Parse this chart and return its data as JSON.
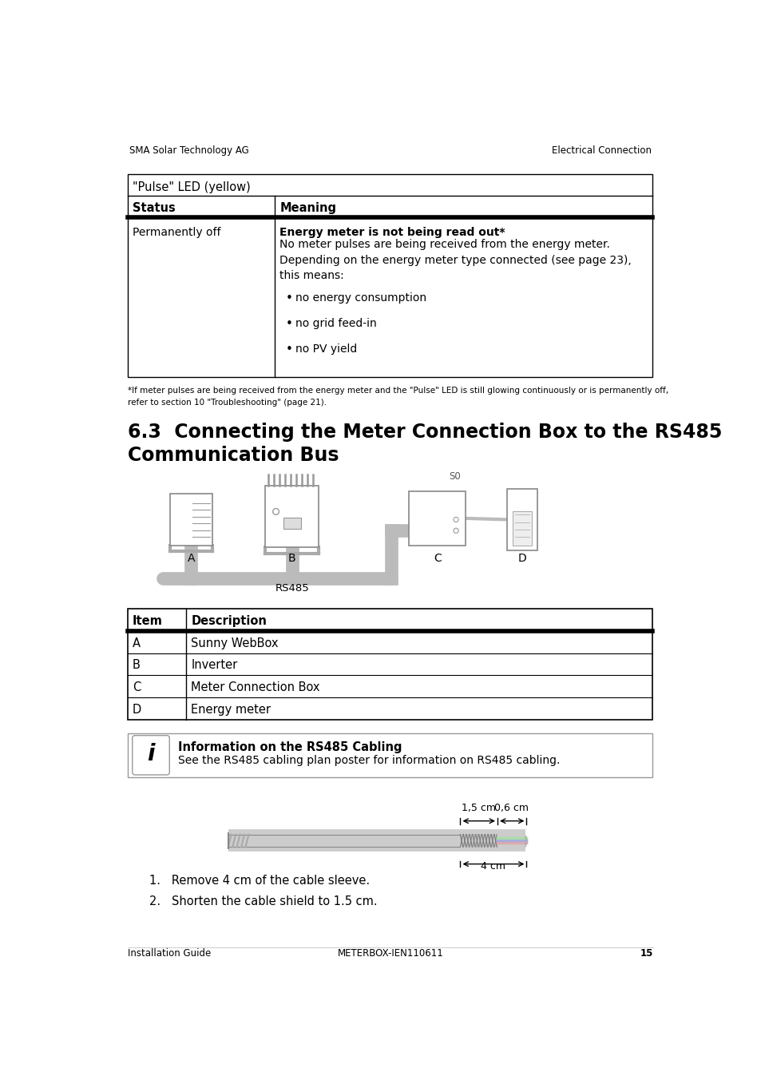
{
  "bg_color": "#ffffff",
  "header_left": "SMA Solar Technology AG",
  "header_right": "Electrical Connection",
  "table1_title": "\"Pulse\" LED (yellow)",
  "table1_col1_header": "Status",
  "table1_col2_header": "Meaning",
  "table1_row1_col1": "Permanently off",
  "table1_row1_col2_bold": "Energy meter is not being read out*",
  "table1_row1_col2_text": "No meter pulses are being received from the energy meter.\nDepending on the energy meter type connected (see page 23),\nthis means:",
  "table1_bullets": [
    "no energy consumption",
    "no grid feed-in",
    "no PV yield"
  ],
  "footnote": "*If meter pulses are being received from the energy meter and the \"Pulse\" LED is still glowing continuously or is permanently off,\nrefer to section 10 \"Troubleshooting\" (page 21).",
  "section_title": "6.3  Connecting the Meter Connection Box to the RS485\nCommunication Bus",
  "diagram_labels": [
    "A",
    "B",
    "C",
    "D"
  ],
  "diagram_rs485": "RS485",
  "table2_col1_header": "Item",
  "table2_col2_header": "Description",
  "table2_rows": [
    [
      "A",
      "Sunny WebBox"
    ],
    [
      "B",
      "Inverter"
    ],
    [
      "C",
      "Meter Connection Box"
    ],
    [
      "D",
      "Energy meter"
    ]
  ],
  "info_title": "Information on the RS485 Cabling",
  "info_text": "See the RS485 cabling plan poster for information on RS485 cabling.",
  "cable_labels": [
    "1,5 cm",
    "0,6 cm",
    "4 cm"
  ],
  "steps": [
    "1.   Remove 4 cm of the cable sleeve.",
    "2.   Shorten the cable shield to 1.5 cm."
  ],
  "footer_left": "Installation Guide",
  "footer_right": "METERBOX-IEN110611",
  "footer_page": "15"
}
